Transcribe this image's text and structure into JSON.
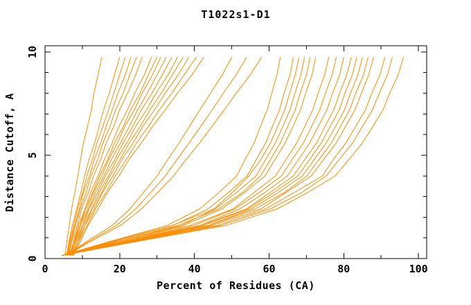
{
  "chart_data": {
    "type": "line",
    "title": "T1022s1-D1",
    "xlabel": "Percent of Residues (CA)",
    "ylabel": "Distance Cutoff, A",
    "xlim": [
      0,
      102.2
    ],
    "ylim": [
      0,
      10.3
    ],
    "x_major_ticks": [
      0,
      20,
      40,
      60,
      80,
      100
    ],
    "x_minor_ticks": [
      10,
      30,
      50,
      70,
      90
    ],
    "y_major_ticks": [
      0,
      5,
      10
    ],
    "y_minor_ticks": [
      1,
      2,
      3,
      4,
      6,
      7,
      8,
      9
    ],
    "grid": false,
    "legend": false,
    "series_color": "#ff8c00",
    "frame_color": "#000000",
    "y_samples": [
      0.15,
      0.8,
      1.6,
      2.4,
      3.2,
      4.0,
      4.8,
      5.6,
      6.4,
      7.2,
      8.0,
      8.9,
      9.75
    ],
    "curves": [
      [
        5.4,
        5.8,
        6.5,
        7.1,
        8.0,
        8.8,
        9.5,
        10.3,
        11.4,
        12.4,
        13.1,
        14.2,
        15.2
      ],
      [
        5.8,
        6.4,
        7.3,
        8.5,
        9.6,
        10.6,
        11.8,
        13.3,
        14.5,
        15.7,
        17.2,
        18.6,
        20.0
      ],
      [
        5.9,
        6.5,
        7.7,
        8.7,
        10.1,
        11.2,
        12.7,
        13.9,
        15.5,
        17.0,
        18.4,
        20.0,
        21.5
      ],
      [
        6.0,
        6.7,
        8.0,
        9.2,
        10.3,
        11.9,
        13.2,
        14.9,
        16.4,
        18.0,
        19.5,
        21.5,
        23.0
      ],
      [
        6.1,
        7.0,
        8.1,
        9.4,
        11.0,
        12.3,
        14.1,
        15.5,
        17.4,
        18.9,
        20.9,
        22.7,
        24.5
      ],
      [
        6.3,
        7.1,
        8.6,
        9.8,
        11.6,
        13.0,
        14.9,
        16.4,
        18.4,
        20.0,
        22.1,
        24.3,
        26.0
      ],
      [
        6.5,
        7.6,
        8.9,
        10.7,
        12.2,
        14.2,
        15.9,
        18.0,
        19.8,
        22.1,
        24.0,
        26.6,
        28.5
      ],
      [
        6.7,
        7.6,
        9.3,
        10.8,
        12.8,
        14.6,
        16.8,
        18.6,
        21.0,
        22.9,
        25.4,
        27.7,
        30.0
      ],
      [
        6.8,
        7.9,
        9.3,
        11.3,
        13.0,
        15.2,
        17.1,
        19.4,
        21.4,
        23.9,
        26.0,
        28.8,
        31.0
      ],
      [
        6.9,
        8.1,
        9.6,
        11.7,
        13.5,
        15.8,
        17.8,
        20.2,
        22.6,
        24.8,
        27.4,
        30.0,
        32.5
      ],
      [
        7.0,
        8.1,
        10.1,
        11.8,
        14.1,
        16.2,
        18.7,
        20.9,
        23.5,
        25.8,
        28.6,
        31.4,
        34.0
      ],
      [
        7.2,
        8.5,
        10.2,
        12.5,
        14.5,
        17.0,
        19.2,
        21.9,
        24.3,
        27.2,
        29.7,
        33.0,
        35.5
      ],
      [
        7.3,
        8.5,
        10.7,
        12.6,
        15.2,
        17.4,
        20.1,
        22.6,
        25.5,
        28.1,
        31.1,
        34.1,
        37.0
      ],
      [
        7.4,
        8.9,
        10.7,
        13.2,
        15.4,
        18.2,
        20.6,
        23.6,
        26.2,
        29.3,
        32.1,
        35.7,
        38.5
      ],
      [
        7.6,
        9.0,
        11.3,
        13.5,
        16.3,
        18.8,
        21.8,
        24.5,
        27.7,
        30.6,
        33.9,
        37.3,
        40.5
      ],
      [
        7.7,
        9.4,
        11.5,
        14.2,
        16.7,
        19.8,
        22.5,
        25.8,
        28.8,
        32.2,
        35.4,
        39.4,
        42.5
      ],
      [
        5.7,
        10.9,
        18.0,
        22.7,
        26.4,
        30.0,
        32.9,
        35.9,
        38.7,
        41.5,
        44.3,
        47.5,
        50.0
      ],
      [
        5.7,
        11.4,
        19.1,
        24.3,
        28.3,
        32.2,
        35.4,
        38.6,
        41.7,
        44.8,
        47.7,
        51.2,
        54.0
      ],
      [
        5.7,
        11.9,
        20.2,
        25.8,
        30.2,
        34.4,
        37.8,
        41.4,
        44.7,
        48.0,
        51.2,
        55.0,
        58.0
      ],
      [
        4.5,
        16.8,
        32.6,
        41.4,
        46.6,
        51.3,
        53.6,
        56.0,
        57.7,
        59.5,
        60.7,
        62.1,
        63.0
      ],
      [
        4.6,
        17.5,
        34.3,
        43.6,
        49.1,
        54.1,
        56.6,
        59.1,
        60.9,
        62.8,
        64.0,
        65.6,
        66.5
      ],
      [
        4.5,
        17.0,
        34.0,
        45.2,
        50.2,
        54.6,
        57.8,
        60.4,
        62.3,
        64.2,
        65.5,
        67.0,
        68.0
      ],
      [
        4.6,
        18.2,
        36.5,
        45.5,
        51.3,
        56.5,
        59.1,
        61.7,
        63.7,
        65.6,
        66.9,
        68.5,
        69.5
      ],
      [
        4.5,
        18.5,
        35.6,
        46.4,
        52.9,
        57.7,
        60.4,
        63.0,
        65.0,
        67.0,
        68.3,
        70.0,
        71.0
      ],
      [
        4.6,
        19.4,
        37.1,
        47.3,
        53.5,
        58.9,
        61.6,
        64.3,
        66.4,
        68.4,
        69.8,
        71.5,
        72.5
      ],
      [
        4.5,
        19.5,
        38.8,
        50.3,
        56.0,
        61.7,
        64.6,
        67.4,
        69.6,
        71.7,
        73.1,
        74.9,
        76.0
      ],
      [
        4.6,
        20.6,
        39.8,
        50.8,
        57.4,
        63.3,
        66.2,
        69.2,
        71.4,
        73.6,
        75.1,
        76.9,
        78.0
      ],
      [
        4.5,
        20.4,
        41.5,
        52.1,
        58.9,
        64.9,
        67.9,
        70.9,
        73.2,
        75.5,
        77.0,
        78.9,
        80.0
      ],
      [
        4.6,
        20.8,
        41.7,
        53.9,
        60.3,
        66.5,
        69.6,
        72.7,
        75.0,
        77.3,
        78.9,
        80.8,
        82.0
      ],
      [
        4.5,
        21.7,
        42.4,
        54.3,
        61.4,
        67.7,
        70.9,
        74.0,
        76.4,
        78.8,
        80.3,
        82.3,
        83.5
      ],
      [
        4.6,
        21.4,
        43.7,
        55.2,
        62.5,
        68.9,
        72.1,
        75.3,
        77.8,
        80.2,
        81.8,
        83.8,
        85.0
      ],
      [
        4.5,
        22.2,
        43.9,
        56.2,
        64.1,
        70.1,
        73.4,
        76.7,
        79.1,
        81.6,
        83.2,
        85.3,
        86.5
      ],
      [
        4.6,
        22.0,
        44.6,
        57.7,
        64.6,
        71.3,
        74.6,
        78.0,
        80.5,
        83.0,
        84.7,
        86.7,
        88.0
      ],
      [
        4.5,
        22.7,
        46.0,
        59.0,
        66.8,
        74.3,
        77.2,
        80.6,
        83.2,
        85.8,
        87.5,
        89.7,
        91.0
      ],
      [
        4.6,
        23.1,
        47.0,
        60.3,
        68.8,
        75.3,
        78.8,
        82.4,
        85.0,
        87.7,
        89.5,
        91.7,
        93.0
      ],
      [
        4.5,
        23.7,
        48.4,
        62.1,
        70.4,
        77.7,
        81.4,
        85.0,
        87.8,
        90.5,
        92.3,
        94.6,
        96.0
      ]
    ]
  }
}
